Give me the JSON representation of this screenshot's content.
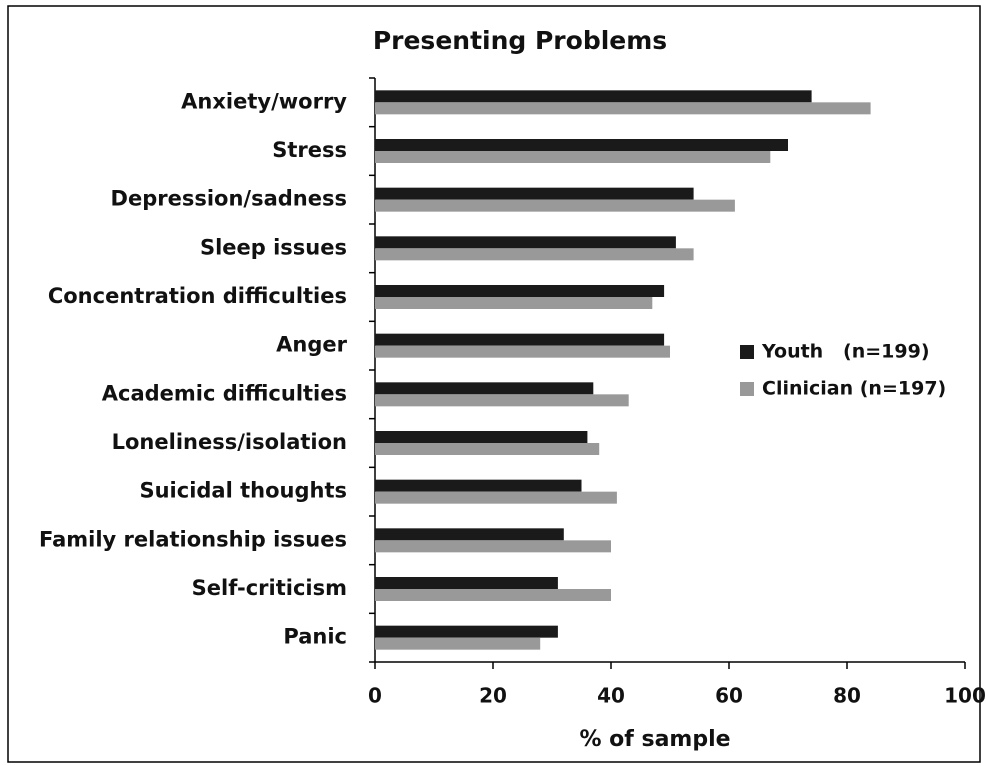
{
  "chart_data": {
    "type": "bar",
    "orientation": "horizontal",
    "title": "Presenting Problems",
    "x_label": "% of sample",
    "categories": [
      "Anxiety/worry",
      "Stress",
      "Depression/sadness",
      "Sleep issues",
      "Concentration difficulties",
      "Anger",
      "Academic difficulties",
      "Loneliness/isolation",
      "Suicidal thoughts",
      "Family relationship issues",
      "Self-criticism",
      "Panic"
    ],
    "series": [
      {
        "name": "Youth   (n=199)",
        "color": "#1a1a1a",
        "values": [
          74,
          70,
          54,
          51,
          49,
          49,
          37,
          36,
          35,
          32,
          31,
          31
        ]
      },
      {
        "name": "Clinician (n=197)",
        "color": "#999999",
        "values": [
          84,
          67,
          61,
          54,
          47,
          50,
          43,
          38,
          41,
          40,
          40,
          28
        ]
      }
    ],
    "xlim": [
      0,
      100
    ],
    "xticks": [
      0,
      20,
      40,
      60,
      80,
      100
    ],
    "grid": false,
    "legend": "right"
  }
}
